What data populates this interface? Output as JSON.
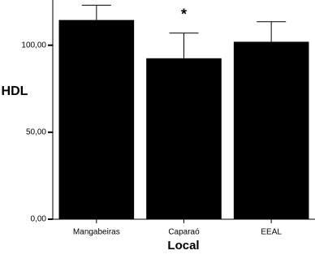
{
  "chart_data": {
    "type": "bar",
    "x_label": "Local",
    "y_label": "HDL",
    "annotation": "*",
    "categories": [
      "Mangabeiras",
      "Caparaó",
      "EEAL"
    ],
    "values": [
      114.5,
      92.5,
      102
    ],
    "errors": [
      8.5,
      14.5,
      11.5
    ],
    "color": "#000000",
    "ylim": [
      0,
      126
    ],
    "yticks": [
      {
        "value": 0,
        "label": "0,00"
      },
      {
        "value": 50,
        "label": "50,00"
      },
      {
        "value": 100,
        "label": "100,00"
      }
    ]
  }
}
